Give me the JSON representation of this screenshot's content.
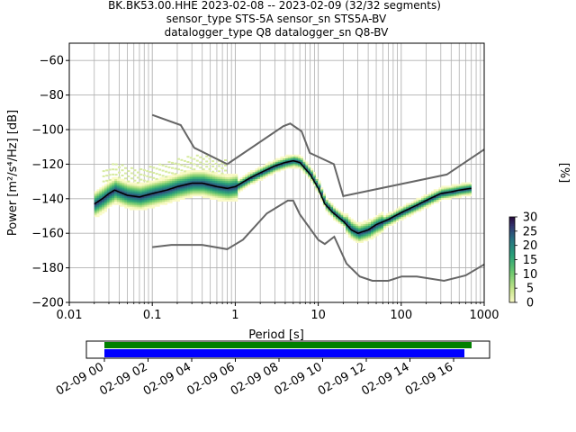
{
  "chart_data": {
    "type": "heatmap",
    "title_lines": [
      "BK.BK53.00.HHE   2023-02-08 -- 2023-02-09  (32/32 segments)",
      "sensor_type STS-5A sensor_sn STS5A-BV",
      "datalogger_type Q8 datalogger_sn Q8-BV"
    ],
    "xlabel": "Period [s]",
    "ylabel": "Power [m²/s⁴/Hz] [dB]",
    "xscale": "log",
    "xlim": [
      0.01,
      1000
    ],
    "ylim": [
      -200,
      -50
    ],
    "grid": true,
    "x_tick_labels": [
      "0.01",
      "0.1",
      "1",
      "10",
      "100",
      "1000"
    ],
    "y_tick_labels": [
      "−60",
      "−80",
      "−100",
      "−120",
      "−140",
      "−160",
      "−180",
      "−200"
    ],
    "y_tick_values": [
      -60,
      -80,
      -100,
      -120,
      -140,
      -160,
      -180,
      -200
    ],
    "colorbar": {
      "label": "[%]",
      "ticks": [
        "0",
        "5",
        "10",
        "15",
        "20",
        "25",
        "30"
      ],
      "range": [
        0,
        30
      ]
    },
    "series": [
      {
        "role": "new-high-noise-model",
        "color": "#666666",
        "points": [
          [
            0.1,
            -91.5
          ],
          [
            0.22,
            -97.4
          ],
          [
            0.32,
            -110.5
          ],
          [
            0.8,
            -120
          ],
          [
            3.8,
            -98
          ],
          [
            4.6,
            -96.5
          ],
          [
            6.3,
            -101
          ],
          [
            7.9,
            -113.5
          ],
          [
            15.4,
            -120
          ],
          [
            20,
            -138.5
          ],
          [
            354.8,
            -126
          ],
          [
            1000,
            -111.5
          ]
        ]
      },
      {
        "role": "new-low-noise-model",
        "color": "#666666",
        "points": [
          [
            0.1,
            -168
          ],
          [
            0.17,
            -166.7
          ],
          [
            0.4,
            -166.7
          ],
          [
            0.8,
            -169.2
          ],
          [
            1.24,
            -163.7
          ],
          [
            2.4,
            -148.5
          ],
          [
            4.3,
            -141.1
          ],
          [
            5,
            -141.1
          ],
          [
            6,
            -149
          ],
          [
            10,
            -163.8
          ],
          [
            12,
            -166.2
          ],
          [
            15.6,
            -162
          ],
          [
            21.9,
            -177.5
          ],
          [
            31.6,
            -185
          ],
          [
            45,
            -187.5
          ],
          [
            70,
            -187.5
          ],
          [
            101,
            -185
          ],
          [
            154,
            -185
          ],
          [
            328,
            -187.5
          ],
          [
            600,
            -184.4
          ],
          [
            1000,
            -178
          ]
        ]
      },
      {
        "role": "mean-psd",
        "color": "#000000",
        "points": [
          [
            0.02,
            -143
          ],
          [
            0.025,
            -140
          ],
          [
            0.03,
            -137
          ],
          [
            0.035,
            -135
          ],
          [
            0.05,
            -138
          ],
          [
            0.07,
            -139
          ],
          [
            0.1,
            -137
          ],
          [
            0.15,
            -135
          ],
          [
            0.2,
            -133
          ],
          [
            0.3,
            -131
          ],
          [
            0.4,
            -131
          ],
          [
            0.6,
            -133
          ],
          [
            0.8,
            -134
          ],
          [
            1,
            -133
          ],
          [
            1.5,
            -128
          ],
          [
            2,
            -125
          ],
          [
            3,
            -121
          ],
          [
            4,
            -119
          ],
          [
            5,
            -118
          ],
          [
            6,
            -119
          ],
          [
            8,
            -126
          ],
          [
            10,
            -134
          ],
          [
            12,
            -143
          ],
          [
            15,
            -148
          ],
          [
            20,
            -153
          ],
          [
            25,
            -158
          ],
          [
            30,
            -160
          ],
          [
            40,
            -158
          ],
          [
            50,
            -155
          ],
          [
            70,
            -152
          ],
          [
            100,
            -148
          ],
          [
            150,
            -144
          ],
          [
            200,
            -141
          ],
          [
            300,
            -137
          ],
          [
            400,
            -136
          ],
          [
            500,
            -135
          ],
          [
            700,
            -134
          ]
        ]
      }
    ]
  },
  "timeline": {
    "tick_labels": [
      "02-09 00",
      "02-09 02",
      "02-09 04",
      "02-09 06",
      "02-09 08",
      "02-09 10",
      "02-09 12",
      "02-09 14",
      "02-09 16"
    ],
    "data_bar_color": "#008000",
    "gap_bar_color": "#0000ff"
  }
}
